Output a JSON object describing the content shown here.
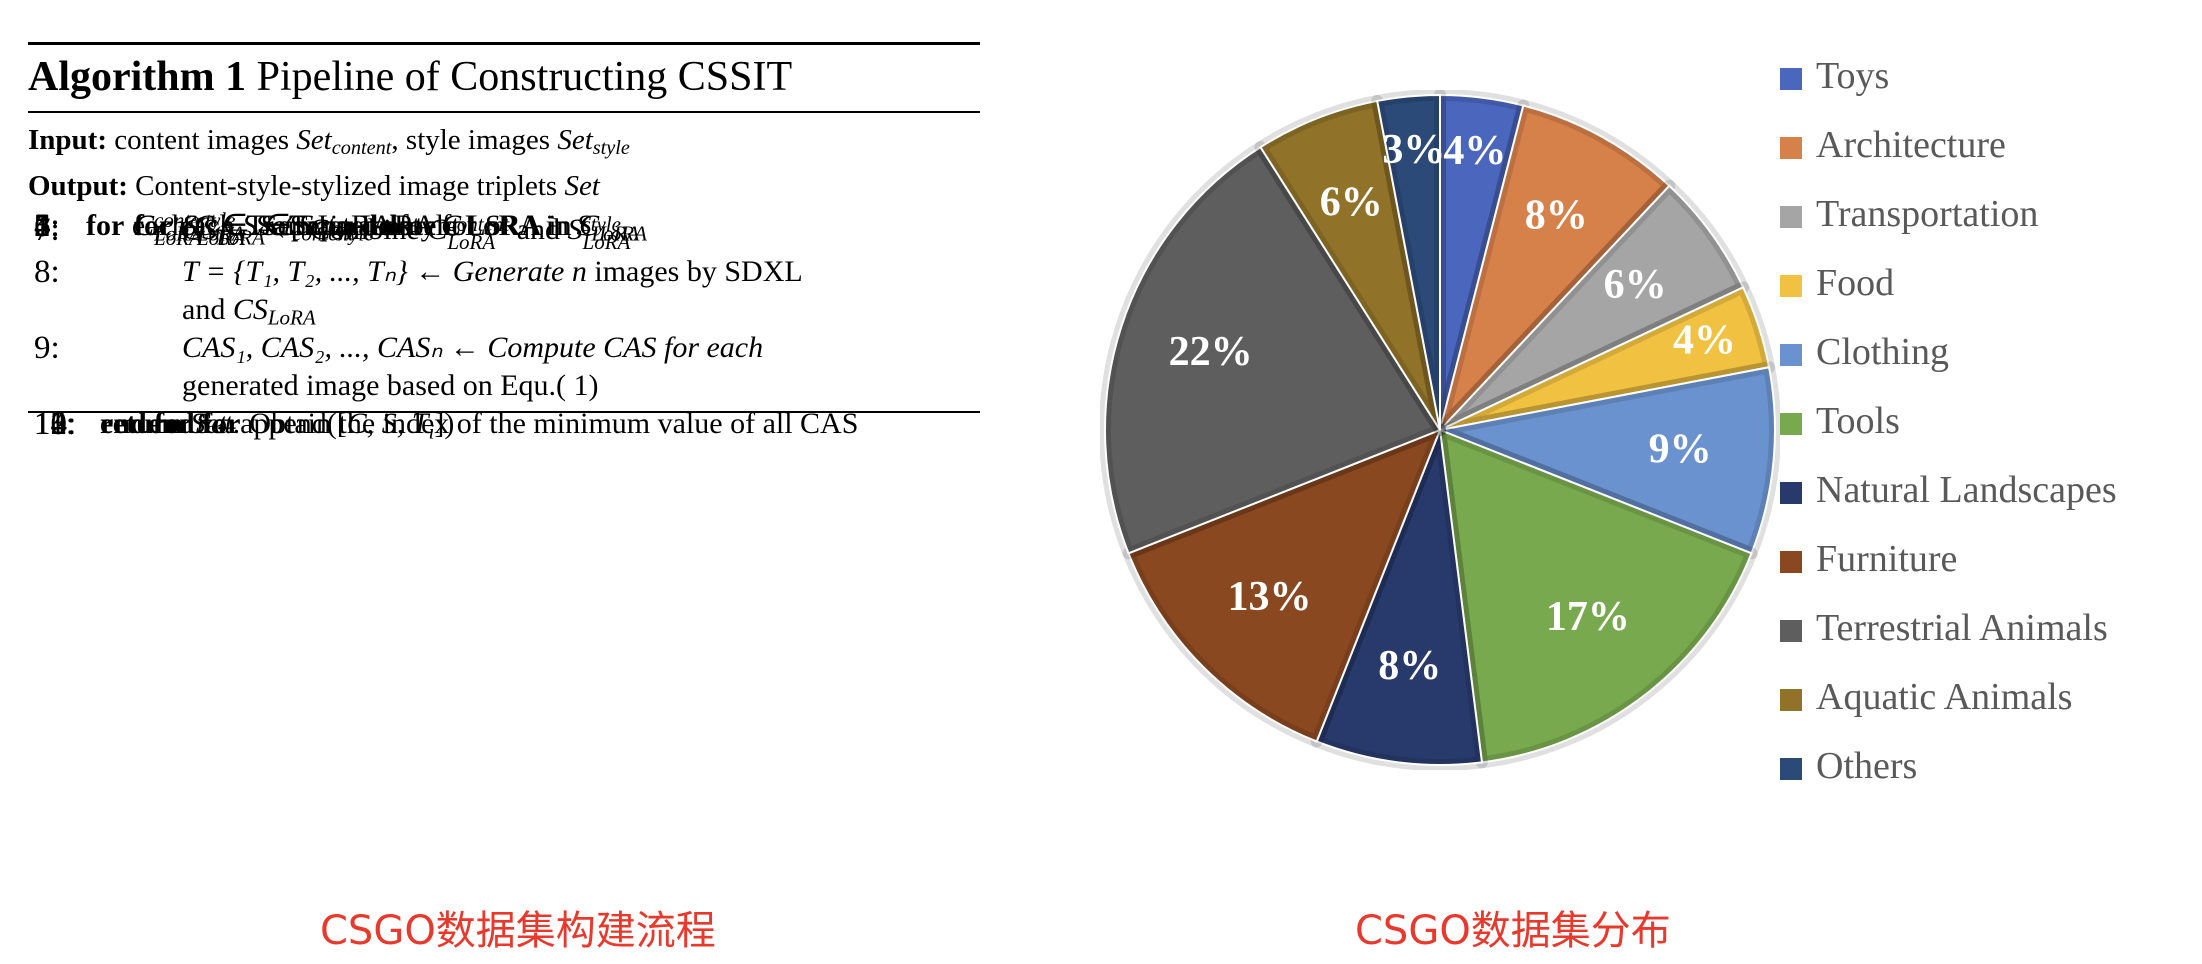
{
  "algorithm": {
    "label": "Algorithm 1",
    "title": "Pipeline of Constructing CSSIT",
    "input_label": "Input:",
    "input_text": "content images",
    "input_var1": "Set",
    "input_var1_sub": "content",
    "input_mid": ", style images",
    "input_var2": "Set",
    "input_var2_sub": "style",
    "output_label": "Output:",
    "output_text": "Content-style-stylized image triplets",
    "output_var": "Set",
    "lines": {
      "l1": {
        "num": "1:",
        "kw1": "for",
        "t1": " each ",
        "v1": "C",
        "t2": " ∈ ",
        "v2": "Set",
        "s2": "content",
        "kw2": " do"
      },
      "l2": {
        "num": "2:",
        "v1": "C",
        "s1": "LoRA",
        "t1": " ← Train LoRA for ",
        "v2": "C"
      },
      "l3": {
        "num": "3:",
        "v1": "C",
        "sup1": "content",
        "s1": "LoRA",
        "t1": " ← Separate content LoRA in ",
        "v2": "C",
        "s2": "LoRA"
      },
      "l4": {
        "num": "4:",
        "kw1": "for",
        "t1": " each ",
        "v1": "S",
        "t2": " ∈ ",
        "v2": "Set",
        "s2": "style",
        "kw2": " do"
      },
      "l5": {
        "num": "5:",
        "v1": "S",
        "s1": "LoRA",
        "t1": " ← Train LoRA for ",
        "v2": "S"
      },
      "l6": {
        "num": "6:",
        "v1": "S",
        "sup1": "style",
        "s1": "LoRA",
        "t1": " ← Separate style LoRA in ",
        "v2": "S",
        "s2": "LoRA"
      },
      "l7": {
        "num": "7:",
        "v1": "CS",
        "s1": "LoRA",
        "t1": " ← Combine ",
        "v2": "C",
        "sup2": "content",
        "s2": "LoRA",
        "t2": " and ",
        "v3": "S",
        "sup3": "style",
        "s3": "LoRA"
      },
      "l8": {
        "num": "8:",
        "t1": "T = {T₁, T₂, ..., Tₙ} ← Generate ",
        "v1": "n",
        "t2": " images by SDXL",
        "t3": "and ",
        "v2": "CS",
        "s2": "LoRA"
      },
      "l9": {
        "num": "9:",
        "t1": "CAS₁, CAS₂, ..., CASₙ ← Compute CAS for each",
        "t2": "generated image based on Equ.( 1)"
      },
      "l10": {
        "num": "10:",
        "v1": "i",
        "t1": " ← Obtain the index of the minimum value of all CAS"
      },
      "l11": {
        "num": "11:",
        "v1": "Set",
        "t1": ".append([",
        "t2": "C, S, T",
        "s2": "i",
        "t3": "])"
      },
      "l12": {
        "num": "12:",
        "kw1": "end for"
      },
      "l13": {
        "num": "13:",
        "kw1": "end for"
      },
      "l14": {
        "num": "14:",
        "kw1": "return",
        "v1": " Set"
      }
    }
  },
  "captions": {
    "left": "CSGO数据集构建流程",
    "right": "CSGO数据集分布"
  },
  "chart_data": {
    "type": "pie",
    "title": "",
    "categories": [
      "Toys",
      "Architecture",
      "Transportation",
      "Food",
      "Clothing",
      "Tools",
      "Natural Landscapes",
      "Furniture",
      "Terrestrial Animals",
      "Aquatic Animals",
      "Others"
    ],
    "values": [
      4,
      8,
      6,
      4,
      9,
      17,
      8,
      13,
      22,
      6,
      3
    ],
    "labels": [
      "4%",
      "8%",
      "6%",
      "4%",
      "9%",
      "17%",
      "8%",
      "13%",
      "22%",
      "6%",
      "3%"
    ],
    "colors": [
      "#4a66bd",
      "#d6804a",
      "#a5a5a5",
      "#f1c141",
      "#6a92cf",
      "#78a94e",
      "#283a6c",
      "#8a4820",
      "#5e5e5e",
      "#907228",
      "#2c4a78"
    ],
    "start_angle_deg": 0,
    "direction": "clockwise",
    "legend_position": "right"
  }
}
